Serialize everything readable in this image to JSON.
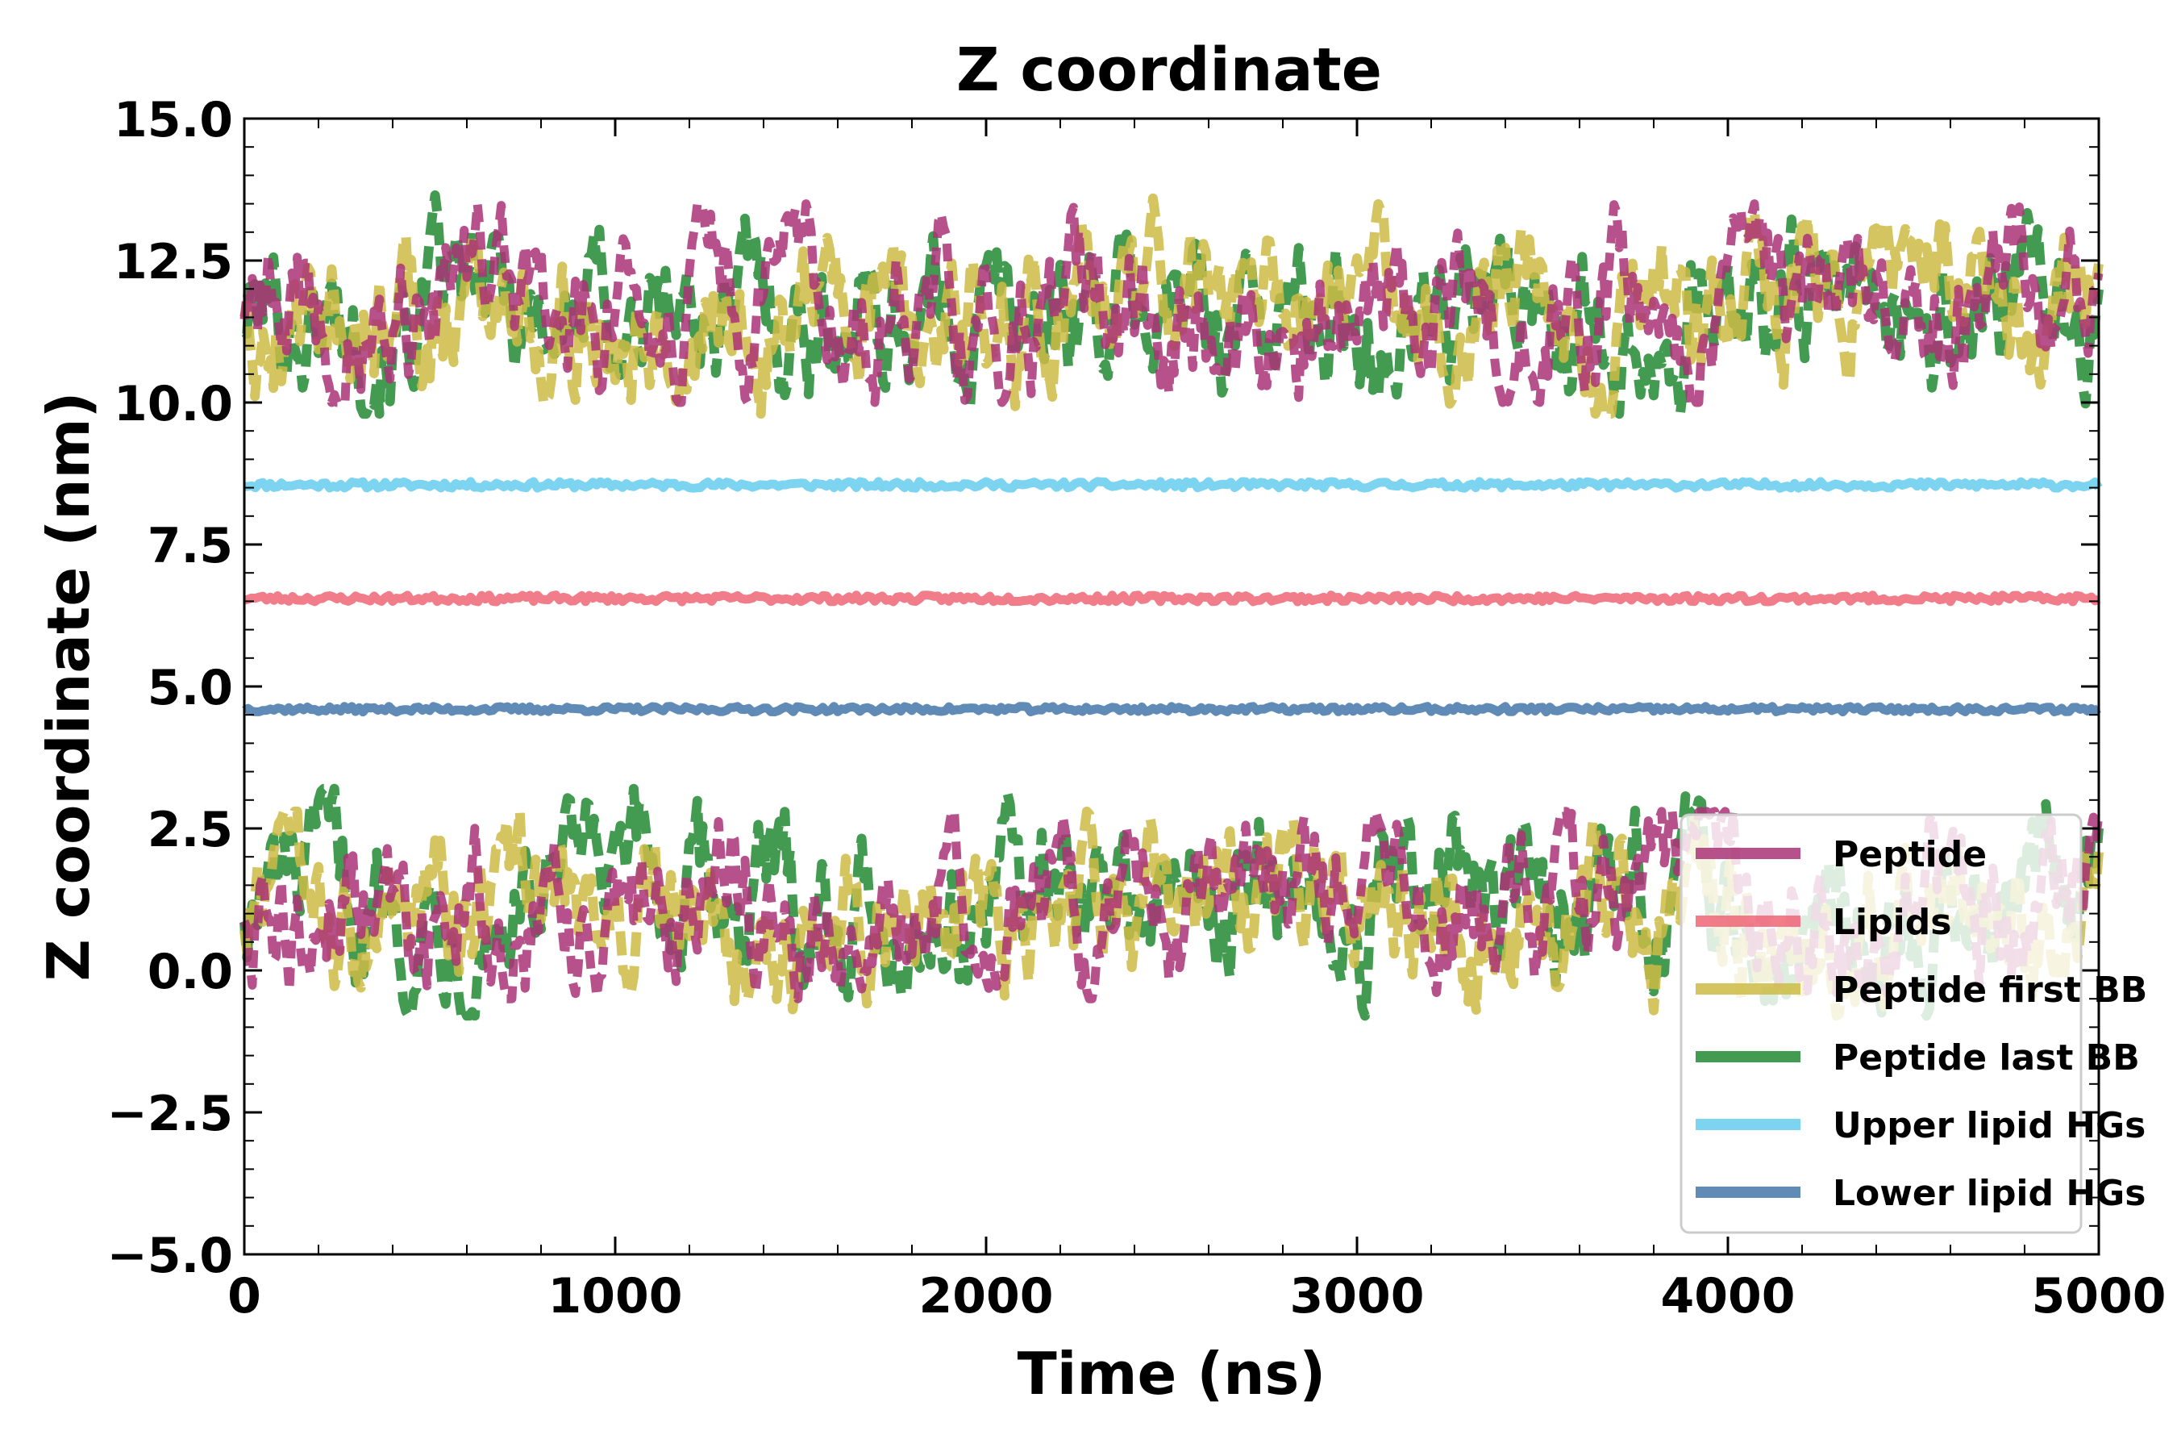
{
  "chart_data": {
    "type": "line",
    "title": "Z coordinate",
    "xlabel": "Time (ns)",
    "ylabel": "Z coordinate (nm)",
    "xlim": [
      0,
      5000
    ],
    "ylim": [
      -5.0,
      15.0
    ],
    "x_ticks": [
      0,
      1000,
      2000,
      3000,
      4000,
      5000
    ],
    "x_tick_labels": [
      "0",
      "1000",
      "2000",
      "3000",
      "4000",
      "5000"
    ],
    "y_ticks": [
      -5.0,
      -2.5,
      0.0,
      2.5,
      5.0,
      7.5,
      10.0,
      12.5,
      15.0
    ],
    "y_tick_labels": [
      "−5.0",
      "−2.5",
      "0.0",
      "2.5",
      "5.0",
      "7.5",
      "10.0",
      "12.5",
      "15.0"
    ],
    "grid": false,
    "legend_position": "lower right",
    "colors": {
      "peptide": "#aa3377",
      "lipids": "#ee6677",
      "peptide_first_bb": "#ccbb44",
      "peptide_last_bb": "#228833",
      "upper_lipid_hgs": "#66ccee",
      "lower_lipid_hgs": "#4477aa"
    },
    "series": [
      {
        "name": "Peptide",
        "color": "#aa3377",
        "style": "dashed",
        "mean": [
          11.7,
          1.1
        ],
        "range_approx": [
          [
            10.0,
            13.5
          ],
          [
            -0.5,
            2.8
          ]
        ],
        "description": "two copies fluctuating near upper and lower leaflets"
      },
      {
        "name": "Lipids",
        "color": "#ee6677",
        "style": "solid",
        "x": [
          0,
          1000,
          2000,
          3000,
          4000,
          5000
        ],
        "values": [
          6.55,
          6.55,
          6.55,
          6.55,
          6.55,
          6.55
        ]
      },
      {
        "name": "Peptide first BB",
        "color": "#ccbb44",
        "style": "dashed",
        "mean": [
          11.8,
          1.0
        ],
        "range_approx": [
          [
            9.8,
            13.8
          ],
          [
            -0.8,
            2.8
          ]
        ]
      },
      {
        "name": "Peptide last BB",
        "color": "#228833",
        "style": "dashed",
        "mean": [
          11.6,
          1.2
        ],
        "range_approx": [
          [
            9.8,
            13.8
          ],
          [
            -0.8,
            3.2
          ]
        ]
      },
      {
        "name": "Upper lipid HGs",
        "color": "#66ccee",
        "style": "solid",
        "x": [
          0,
          1000,
          2000,
          3000,
          4000,
          5000
        ],
        "values": [
          8.55,
          8.55,
          8.55,
          8.55,
          8.55,
          8.55
        ]
      },
      {
        "name": "Lower lipid HGs",
        "color": "#4477aa",
        "style": "solid",
        "x": [
          0,
          1000,
          2000,
          3000,
          4000,
          5000
        ],
        "values": [
          4.6,
          4.6,
          4.6,
          4.6,
          4.6,
          4.6
        ]
      }
    ],
    "legend": [
      "Peptide",
      "Lipids",
      "Peptide first BB",
      "Peptide last BB",
      "Upper lipid HGs",
      "Lower lipid HGs"
    ]
  }
}
